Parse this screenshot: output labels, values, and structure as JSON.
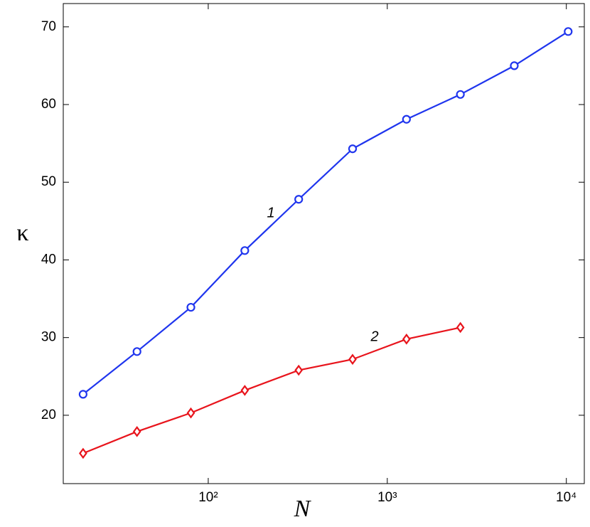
{
  "chart_data": {
    "type": "line",
    "xscale": "log",
    "xlabel": "N",
    "ylabel": "κ",
    "x": [
      20,
      40,
      80,
      160,
      320,
      640,
      1280,
      2560,
      5120,
      10240
    ],
    "series": [
      {
        "name": "1",
        "color": "#1f35ee",
        "marker": "circle",
        "values": [
          22.7,
          28.2,
          33.9,
          41.2,
          47.8,
          54.3,
          58.1,
          61.3,
          65.0,
          69.4
        ]
      },
      {
        "name": "2",
        "color": "#e8141c",
        "marker": "diamond",
        "values": [
          15.1,
          17.9,
          20.3,
          23.2,
          25.8,
          27.2,
          29.8,
          31.3,
          null,
          null
        ]
      }
    ],
    "xlim": [
      15.5,
      12600
    ],
    "ylim": [
      11.2,
      73
    ],
    "xticks": [
      {
        "value": 100,
        "label": "10²"
      },
      {
        "value": 1000,
        "label": "10³"
      },
      {
        "value": 10000,
        "label": "10⁴"
      }
    ],
    "yticks": [
      20,
      30,
      40,
      50,
      60,
      70
    ]
  }
}
